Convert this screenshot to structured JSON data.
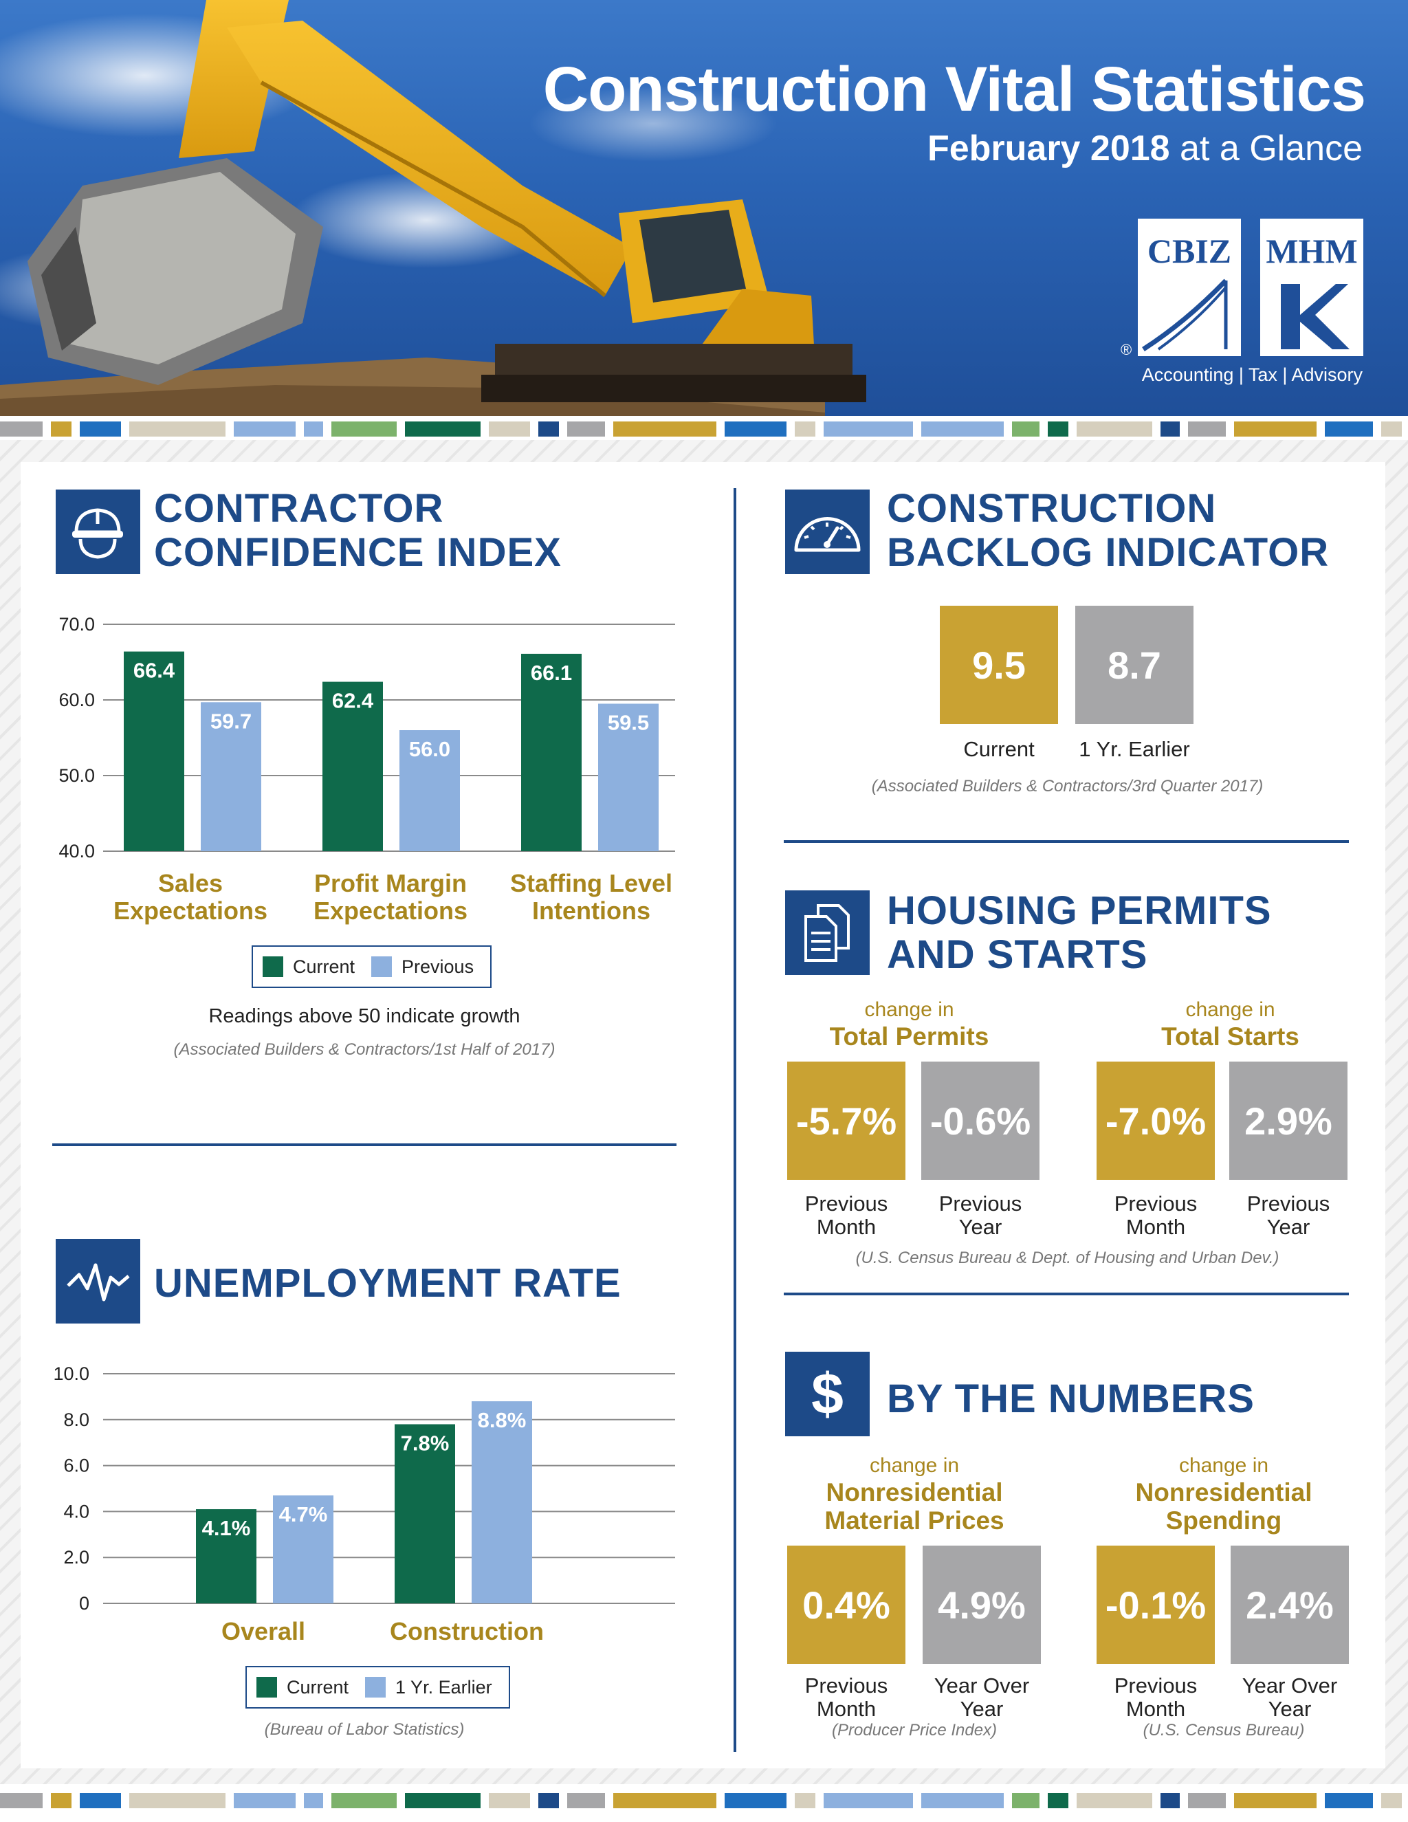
{
  "header": {
    "title": "Construction Vital Statistics",
    "subtitle_bold": "February 2018",
    "subtitle_rest": " at a Glance",
    "logo_left": "CBIZ",
    "logo_right": "MHM",
    "registered_mark": "®",
    "tagline": "Accounting | Tax | Advisory"
  },
  "colors": {
    "navy": "#1d4a88",
    "green": "#0f6a4b",
    "light_blue": "#8db0de",
    "gold": "#c9a233",
    "grey": "#a6a6a8"
  },
  "confidence": {
    "title_line1": "CONTRACTOR",
    "title_line2": "CONFIDENCE INDEX",
    "icon": "hard-hat-icon",
    "legend_current": "Current",
    "legend_previous": "Previous",
    "note": "Readings above 50 indicate growth",
    "source": "(Associated Builders & Contractors/1st Half of 2017)",
    "categories": [
      "Sales\nExpectations",
      "Profit Margin\nExpectations",
      "Staffing Level\nIntentions"
    ]
  },
  "unemployment": {
    "title": "UNEMPLOYMENT RATE",
    "icon": "pulse-icon",
    "legend_current": "Current",
    "legend_previous": "1 Yr. Earlier",
    "source": "(Bureau of Labor Statistics)",
    "categories": [
      "Overall",
      "Construction"
    ]
  },
  "chart_data": [
    {
      "type": "bar",
      "title": "CONTRACTOR CONFIDENCE INDEX",
      "categories": [
        "Sales Expectations",
        "Profit Margin Expectations",
        "Staffing Level Intentions"
      ],
      "series": [
        {
          "name": "Current",
          "values": [
            66.4,
            62.4,
            66.1
          ],
          "labels": [
            "66.4",
            "62.4",
            "66.1"
          ]
        },
        {
          "name": "Previous",
          "values": [
            59.7,
            56.0,
            59.5
          ],
          "labels": [
            "59.7",
            "56.0",
            "59.5"
          ]
        }
      ],
      "ylim": [
        40,
        70
      ],
      "yticks": [
        "40.0",
        "50.0",
        "60.0",
        "70.0"
      ],
      "yticks_values": [
        40,
        50,
        60,
        70
      ],
      "grid": true,
      "legend": "bottom"
    },
    {
      "type": "bar",
      "title": "UNEMPLOYMENT RATE",
      "categories": [
        "Overall",
        "Construction"
      ],
      "series": [
        {
          "name": "Current",
          "values": [
            4.1,
            7.8
          ],
          "labels": [
            "4.1%",
            "7.8%"
          ]
        },
        {
          "name": "1 Yr. Earlier",
          "values": [
            4.7,
            8.8
          ],
          "labels": [
            "4.7%",
            "8.8%"
          ]
        }
      ],
      "ylim": [
        0,
        10
      ],
      "yticks": [
        "0",
        "2.0",
        "4.0",
        "6.0",
        "8.0",
        "10.0"
      ],
      "yticks_values": [
        0,
        2,
        4,
        6,
        8,
        10
      ],
      "grid": true,
      "legend": "bottom"
    }
  ],
  "backlog": {
    "title_line1": "CONSTRUCTION",
    "title_line2": "BACKLOG INDICATOR",
    "icon": "gauge-icon",
    "current_value": "9.5",
    "current_label": "Current",
    "earlier_value": "8.7",
    "earlier_label": "1 Yr. Earlier",
    "source": "(Associated Builders & Contractors/3rd Quarter 2017)"
  },
  "housing": {
    "title_line1": "HOUSING PERMITS",
    "title_line2": "AND STARTS",
    "icon": "documents-icon",
    "permits_small": "change in",
    "permits_big": "Total Permits",
    "starts_small": "change in",
    "starts_big": "Total Starts",
    "values": [
      "-5.7%",
      "-0.6%",
      "-7.0%",
      "2.9%"
    ],
    "captions": [
      "Previous\nMonth",
      "Previous\nYear",
      "Previous\nMonth",
      "Previous\nYear"
    ],
    "source": "(U.S. Census Bureau & Dept. of Housing and Urban Dev.)"
  },
  "numbers": {
    "title": "BY THE NUMBERS",
    "icon": "dollar-icon",
    "material_small": "change in",
    "material_big": "Nonresidential\nMaterial Prices",
    "spending_small": "change in",
    "spending_big": "Nonresidential\nSpending",
    "values": [
      "0.4%",
      "4.9%",
      "-0.1%",
      "2.4%"
    ],
    "captions": [
      "Previous\nMonth",
      "Year Over\nYear",
      "Previous\nMonth",
      "Year Over\nYear"
    ],
    "source_left": "(Producer Price Index)",
    "source_right": "(U.S. Census Bureau)"
  }
}
